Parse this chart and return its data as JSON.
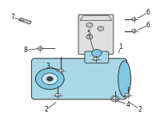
{
  "bg_color": "#ffffff",
  "fig_width": 2.0,
  "fig_height": 1.47,
  "dpi": 100,
  "pump_color": "#a8d8e8",
  "pump_color2": "#7ec8e3",
  "pump_color3": "#c8eaf5",
  "bracket_color": "#d8d8d8",
  "line_color": "#444444",
  "text_color": "#111111",
  "label_fontsize": 5.5
}
